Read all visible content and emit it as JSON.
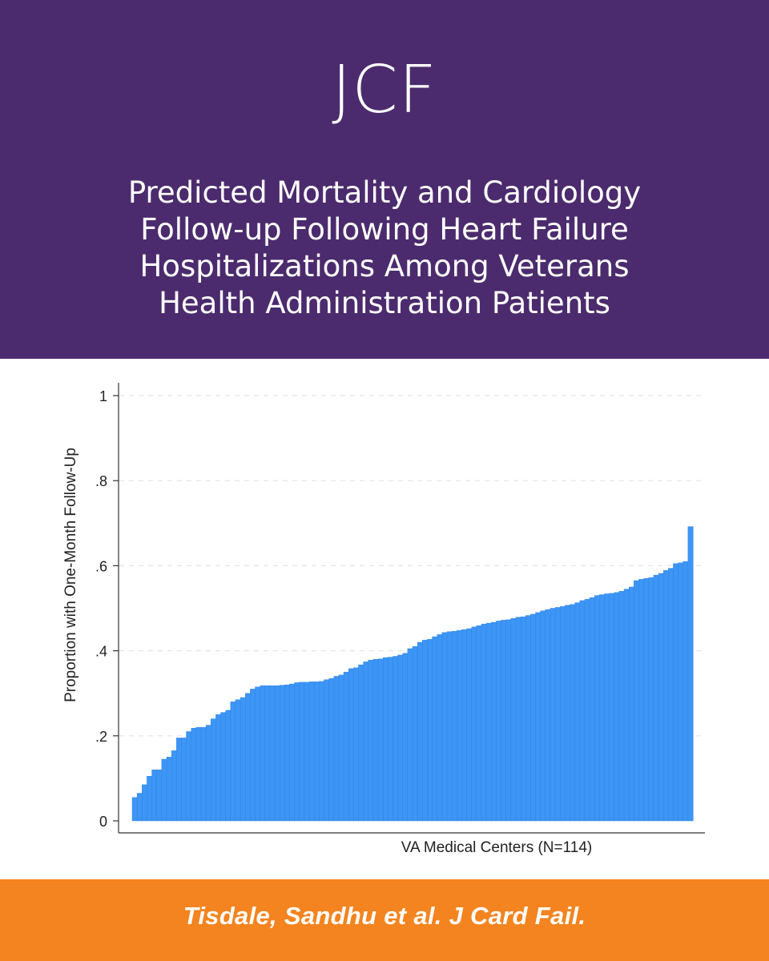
{
  "header": {
    "journal": "JCF",
    "title_lines": [
      "Predicted Mortality and Cardiology",
      "Follow-up Following Heart Failure",
      "Hospitalizations Among Veterans",
      "Health Administration Patients"
    ]
  },
  "colors": {
    "header_bg": "#4b2b6d",
    "footer_bg": "#f3841f",
    "bar": "#3d95f5",
    "bar_edge": "#2a7fe0"
  },
  "chart_data": {
    "type": "bar",
    "title": "",
    "xlabel": "VA Medical Centers (N=114)",
    "ylabel": "Proportion with One-Month Follow-Up",
    "ylim": [
      0,
      1
    ],
    "yticks": [
      0,
      0.2,
      0.4,
      0.6,
      0.8,
      1
    ],
    "ytick_labels": [
      "0",
      ".2",
      ".4",
      ".6",
      ".8",
      "1"
    ],
    "grid": true,
    "sorted": "ascending",
    "values": [
      0.055,
      0.065,
      0.085,
      0.105,
      0.12,
      0.12,
      0.145,
      0.15,
      0.165,
      0.195,
      0.195,
      0.21,
      0.218,
      0.22,
      0.22,
      0.225,
      0.24,
      0.25,
      0.255,
      0.26,
      0.28,
      0.285,
      0.29,
      0.3,
      0.31,
      0.315,
      0.318,
      0.318,
      0.318,
      0.318,
      0.319,
      0.32,
      0.322,
      0.325,
      0.326,
      0.326,
      0.327,
      0.327,
      0.328,
      0.332,
      0.335,
      0.34,
      0.343,
      0.35,
      0.358,
      0.36,
      0.367,
      0.374,
      0.378,
      0.38,
      0.381,
      0.384,
      0.385,
      0.387,
      0.39,
      0.394,
      0.405,
      0.41,
      0.42,
      0.425,
      0.427,
      0.433,
      0.438,
      0.443,
      0.445,
      0.446,
      0.448,
      0.45,
      0.452,
      0.456,
      0.459,
      0.463,
      0.465,
      0.467,
      0.47,
      0.472,
      0.473,
      0.476,
      0.479,
      0.48,
      0.483,
      0.486,
      0.49,
      0.494,
      0.497,
      0.5,
      0.502,
      0.504,
      0.507,
      0.509,
      0.513,
      0.518,
      0.521,
      0.525,
      0.53,
      0.532,
      0.534,
      0.535,
      0.537,
      0.54,
      0.545,
      0.55,
      0.565,
      0.568,
      0.57,
      0.572,
      0.578,
      0.582,
      0.589,
      0.594,
      0.605,
      0.607,
      0.61,
      0.692
    ]
  },
  "footer": {
    "citation": "Tisdale, Sandhu et al. J Card Fail."
  }
}
